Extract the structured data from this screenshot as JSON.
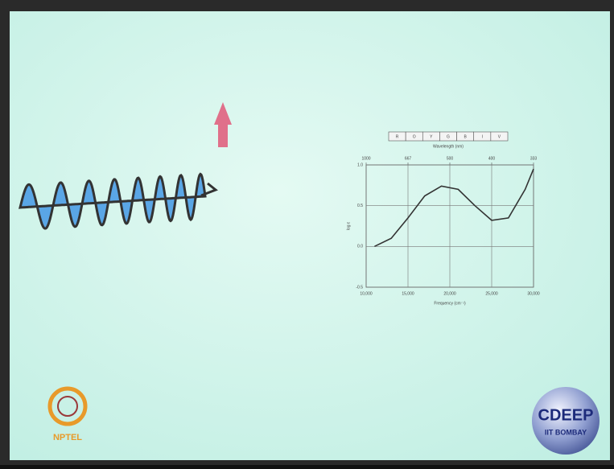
{
  "chart_data": {
    "type": "line",
    "spectrum_bands": [
      "R",
      "O",
      "Y",
      "G",
      "B",
      "I",
      "V"
    ],
    "top_axis_label": "Wavelength (nm)",
    "xlabel": "Frequency (cm⁻¹)",
    "ylabel": "log ε",
    "x": [
      11000,
      13000,
      15000,
      17000,
      19000,
      21000,
      23000,
      25000,
      27000,
      29000,
      30000
    ],
    "values": [
      0.0,
      0.1,
      0.35,
      0.62,
      0.74,
      0.7,
      0.5,
      0.32,
      0.35,
      0.7,
      0.95
    ],
    "color": "#333333",
    "xlim": [
      10000,
      30000
    ],
    "ylim": [
      -0.5,
      1.0
    ],
    "xticks": [
      {
        "value": 10000,
        "label": "10,000"
      },
      {
        "value": 15000,
        "label": "15,000"
      },
      {
        "value": 20000,
        "label": "20,000"
      },
      {
        "value": 25000,
        "label": "25,000"
      },
      {
        "value": 30000,
        "label": "30,000"
      }
    ],
    "x2ticks": [
      {
        "value": 10000,
        "label": "1000"
      },
      {
        "value": 15000,
        "label": "667"
      },
      {
        "value": 20000,
        "label": "500"
      },
      {
        "value": 25000,
        "label": "400"
      },
      {
        "value": 30000,
        "label": "333"
      }
    ],
    "yticks": [
      {
        "value": 1.0,
        "label": "1.0"
      },
      0.5,
      {
        "value": 0.0,
        "label": "0.0"
      },
      -0.5
    ],
    "grid": true
  },
  "logos": {
    "left": "NPTEL",
    "right_title": "CDEEP",
    "right_subtitle": "IIT BOMBAY"
  }
}
